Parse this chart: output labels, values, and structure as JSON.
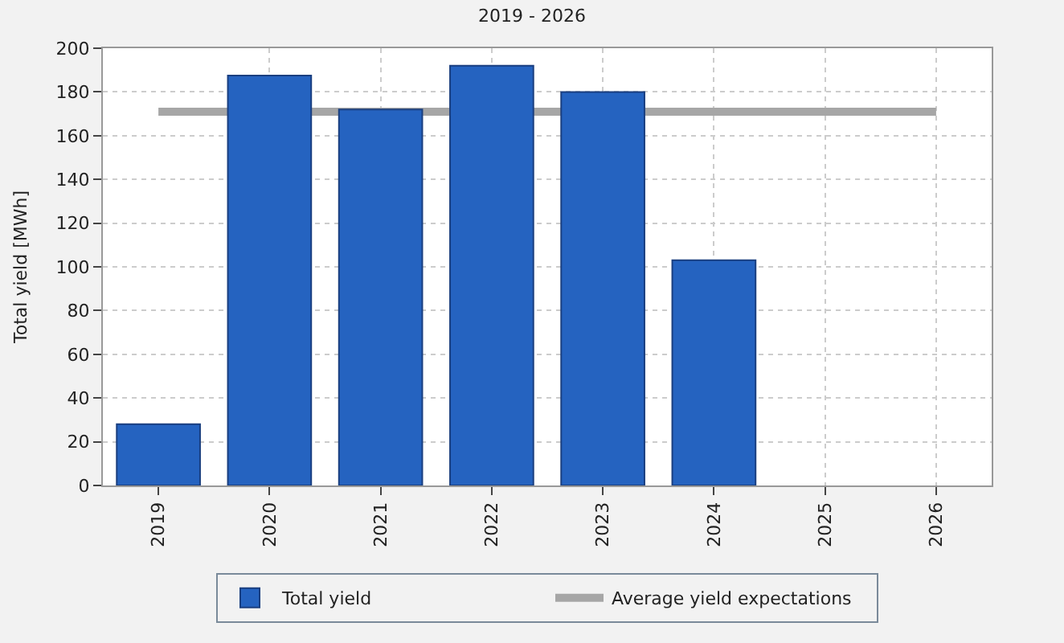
{
  "chart_data": {
    "type": "bar",
    "title": "2019 - 2026",
    "ylabel": "Total yield [MWh]",
    "categories": [
      "2019",
      "2020",
      "2021",
      "2022",
      "2023",
      "2024",
      "2025",
      "2026"
    ],
    "series": [
      {
        "name": "Total yield",
        "color": "#2563c0",
        "values": [
          28,
          187.5,
          172,
          192,
          180,
          103,
          null,
          null
        ]
      },
      {
        "name": "Average yield expectations",
        "type": "line",
        "color": "#a6a6a6",
        "values": [
          171,
          null,
          171,
          null,
          null,
          171,
          171,
          171
        ]
      }
    ],
    "ylim": [
      0,
      200
    ],
    "yticks": [
      0,
      20,
      40,
      60,
      80,
      100,
      120,
      140,
      160,
      180,
      200
    ],
    "grid": true,
    "legend": "bottom"
  }
}
